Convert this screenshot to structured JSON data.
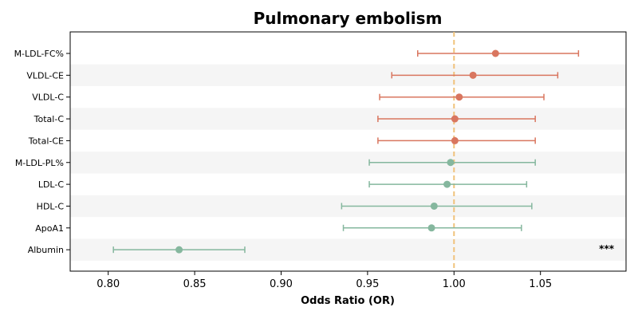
{
  "chart_data": {
    "type": "scatter",
    "subtype": "forest-plot",
    "title": "Pulmonary embolism",
    "xlabel": "Odds Ratio (OR)",
    "ylabel": "",
    "xlim": [
      0.778,
      1.0995
    ],
    "xticks": [
      "0.80",
      "0.85",
      "0.90",
      "0.95",
      "1.00",
      "1.05"
    ],
    "xtick_values": [
      0.8,
      0.85,
      0.9,
      0.95,
      1.0,
      1.05
    ],
    "reference_line": 1.0,
    "reference_color": "#f0c27b",
    "alternate_row_shading": true,
    "row_shade_color": "#f5f5f5",
    "grid": false,
    "categories": [
      "M-LDL-FC%",
      "VLDL-CE",
      "VLDL-C",
      "Total-C",
      "Total-CE",
      "M-LDL-PL%",
      "LDL-C",
      "HDL-C",
      "ApoA1",
      "Albumin"
    ],
    "or": [
      1.024,
      1.011,
      1.003,
      1.0005,
      1.0005,
      0.998,
      0.996,
      0.9885,
      0.987,
      0.841
    ],
    "ci_low": [
      0.979,
      0.964,
      0.957,
      0.956,
      0.956,
      0.951,
      0.951,
      0.935,
      0.936,
      0.803
    ],
    "ci_high": [
      1.072,
      1.06,
      1.052,
      1.047,
      1.047,
      1.047,
      1.042,
      1.045,
      1.039,
      0.879
    ],
    "colors": [
      "#d9765f",
      "#d9765f",
      "#d9765f",
      "#d9765f",
      "#d9765f",
      "#85b79e",
      "#85b79e",
      "#85b79e",
      "#85b79e",
      "#85b79e"
    ],
    "annotations": [
      {
        "category": "Albumin",
        "text": "***"
      }
    ]
  }
}
